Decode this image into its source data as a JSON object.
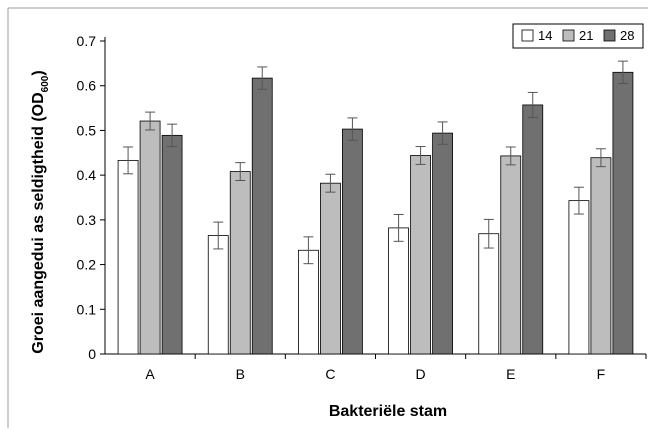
{
  "chart_data": {
    "type": "bar",
    "title": "",
    "xlabel": "Bakteriële stam",
    "ylabel": "Groei aangedui as seldigtheid (OD",
    "ylabel_sub": "600",
    "ylabel_end": ")",
    "categories": [
      "A",
      "B",
      "C",
      "D",
      "E",
      "F"
    ],
    "ylim": [
      0,
      0.7
    ],
    "yticks": [
      "0",
      "0.1",
      "0.2",
      "0.3",
      "0.4",
      "0.5",
      "0.6",
      "0.7"
    ],
    "grid": false,
    "legend_position": "top-right",
    "series": [
      {
        "name": "14",
        "color": "#ffffff",
        "values": [
          0.433,
          0.265,
          0.232,
          0.282,
          0.269,
          0.343
        ],
        "errors": [
          0.03,
          0.03,
          0.03,
          0.03,
          0.032,
          0.03
        ]
      },
      {
        "name": "21",
        "color": "#bdbdbd",
        "values": [
          0.521,
          0.408,
          0.382,
          0.444,
          0.443,
          0.439
        ],
        "errors": [
          0.02,
          0.02,
          0.02,
          0.02,
          0.02,
          0.02
        ]
      },
      {
        "name": "28",
        "color": "#707070",
        "values": [
          0.489,
          0.617,
          0.503,
          0.494,
          0.557,
          0.63
        ],
        "errors": [
          0.025,
          0.025,
          0.025,
          0.025,
          0.028,
          0.025
        ]
      }
    ]
  }
}
